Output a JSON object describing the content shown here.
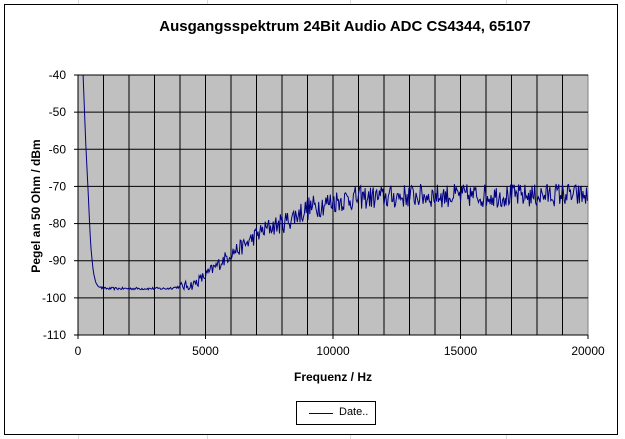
{
  "chart_data": {
    "type": "line",
    "title": "Ausgangsspektrum 24Bit Audio ADC CS4344, 65107",
    "xlabel": "Frequenz / Hz",
    "ylabel": "Pegel an 50 Ohm / dBm",
    "xlim": [
      0,
      20000
    ],
    "ylim": [
      -110,
      -40
    ],
    "x_ticks": [
      "0",
      "5000",
      "10000",
      "15000",
      "20000"
    ],
    "y_ticks": [
      "-40",
      "-50",
      "-60",
      "-70",
      "-80",
      "-90",
      "-100",
      "-110"
    ],
    "grid": true,
    "legend_position": "bottom",
    "plot_background": "#c0c0c0",
    "series": [
      {
        "name": "Date..",
        "color": "#000080",
        "x": [
          200,
          300,
          400,
          500,
          600,
          700,
          800,
          1000,
          1500,
          2000,
          2500,
          3000,
          3500,
          4000,
          4500,
          5000,
          5500,
          6000,
          6500,
          7000,
          7500,
          8000,
          8500,
          9000,
          9500,
          10000,
          11000,
          12000,
          13000,
          14000,
          15000,
          16000,
          17000,
          18000,
          19000,
          19500,
          20000
        ],
        "values": [
          -40,
          -58,
          -72,
          -86,
          -93,
          -96,
          -97,
          -97.5,
          -97.5,
          -97.5,
          -97.5,
          -97.5,
          -97.5,
          -97,
          -96.5,
          -94,
          -91,
          -88,
          -86,
          -83,
          -81,
          -80,
          -78,
          -76,
          -75,
          -74,
          -73,
          -73,
          -72.5,
          -72.5,
          -72.5,
          -72.5,
          -72.5,
          -72.5,
          -72,
          -72.5,
          -72.5
        ]
      }
    ]
  }
}
